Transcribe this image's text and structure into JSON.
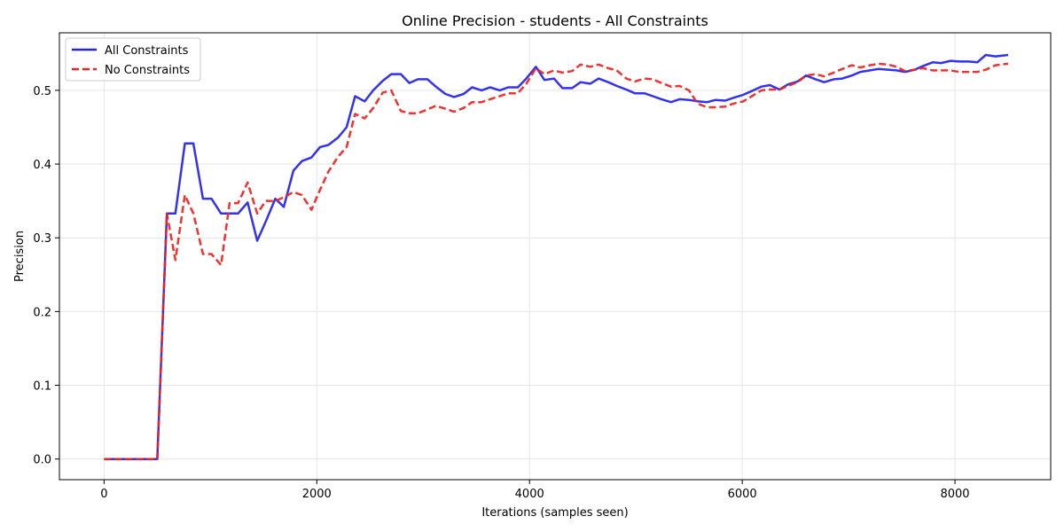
{
  "chart_data": {
    "type": "line",
    "title": "Online Precision - students - All Constraints",
    "xlabel": "Iterations (samples seen)",
    "ylabel": "Precision",
    "xlim": [
      -420,
      8900
    ],
    "ylim": [
      -0.028,
      0.578
    ],
    "xticks": [
      0,
      2000,
      4000,
      6000,
      8000
    ],
    "yticks": [
      0.0,
      0.1,
      0.2,
      0.3,
      0.4,
      0.5
    ],
    "grid": true,
    "legend_position": "top-left",
    "series": [
      {
        "name": "All Constraints",
        "color": "#2222ee",
        "dash": "solid",
        "points": [
          [
            0,
            0
          ],
          [
            100,
            0
          ],
          [
            200,
            0
          ],
          [
            300,
            0
          ],
          [
            400,
            0
          ],
          [
            500,
            0
          ],
          [
            590,
            0.333
          ],
          [
            670,
            0.333
          ],
          [
            760,
            0.428
          ],
          [
            840,
            0.428
          ],
          [
            930,
            0.353
          ],
          [
            1010,
            0.353
          ],
          [
            1100,
            0.333
          ],
          [
            1180,
            0.333
          ],
          [
            1260,
            0.333
          ],
          [
            1350,
            0.348
          ],
          [
            1440,
            0.296
          ],
          [
            1520,
            0.322
          ],
          [
            1610,
            0.353
          ],
          [
            1690,
            0.342
          ],
          [
            1780,
            0.391
          ],
          [
            1860,
            0.404
          ],
          [
            1950,
            0.409
          ],
          [
            2030,
            0.423
          ],
          [
            2110,
            0.426
          ],
          [
            2200,
            0.436
          ],
          [
            2280,
            0.45
          ],
          [
            2360,
            0.492
          ],
          [
            2450,
            0.485
          ],
          [
            2530,
            0.5
          ],
          [
            2620,
            0.513
          ],
          [
            2700,
            0.522
          ],
          [
            2790,
            0.522
          ],
          [
            2870,
            0.51
          ],
          [
            2950,
            0.515
          ],
          [
            3040,
            0.515
          ],
          [
            3120,
            0.505
          ],
          [
            3210,
            0.495
          ],
          [
            3290,
            0.491
          ],
          [
            3380,
            0.495
          ],
          [
            3460,
            0.504
          ],
          [
            3550,
            0.5
          ],
          [
            3630,
            0.504
          ],
          [
            3720,
            0.5
          ],
          [
            3800,
            0.504
          ],
          [
            3890,
            0.504
          ],
          [
            3970,
            0.516
          ],
          [
            4060,
            0.532
          ],
          [
            4140,
            0.514
          ],
          [
            4230,
            0.516
          ],
          [
            4310,
            0.503
          ],
          [
            4400,
            0.503
          ],
          [
            4480,
            0.511
          ],
          [
            4570,
            0.509
          ],
          [
            4650,
            0.516
          ],
          [
            4740,
            0.511
          ],
          [
            4820,
            0.506
          ],
          [
            4910,
            0.501
          ],
          [
            4990,
            0.496
          ],
          [
            5080,
            0.496
          ],
          [
            5160,
            0.492
          ],
          [
            5240,
            0.488
          ],
          [
            5330,
            0.484
          ],
          [
            5410,
            0.488
          ],
          [
            5500,
            0.487
          ],
          [
            5580,
            0.485
          ],
          [
            5670,
            0.484
          ],
          [
            5750,
            0.487
          ],
          [
            5840,
            0.486
          ],
          [
            5920,
            0.49
          ],
          [
            6010,
            0.494
          ],
          [
            6090,
            0.499
          ],
          [
            6180,
            0.505
          ],
          [
            6260,
            0.507
          ],
          [
            6350,
            0.501
          ],
          [
            6430,
            0.508
          ],
          [
            6520,
            0.512
          ],
          [
            6600,
            0.52
          ],
          [
            6690,
            0.515
          ],
          [
            6770,
            0.511
          ],
          [
            6860,
            0.515
          ],
          [
            6940,
            0.516
          ],
          [
            7030,
            0.52
          ],
          [
            7110,
            0.525
          ],
          [
            7200,
            0.527
          ],
          [
            7280,
            0.529
          ],
          [
            7370,
            0.528
          ],
          [
            7450,
            0.527
          ],
          [
            7530,
            0.525
          ],
          [
            7620,
            0.528
          ],
          [
            7700,
            0.533
          ],
          [
            7790,
            0.538
          ],
          [
            7870,
            0.537
          ],
          [
            7960,
            0.54
          ],
          [
            8040,
            0.539
          ],
          [
            8130,
            0.539
          ],
          [
            8210,
            0.538
          ],
          [
            8290,
            0.548
          ],
          [
            8380,
            0.546
          ],
          [
            8500,
            0.548
          ]
        ]
      },
      {
        "name": "No Constraints",
        "color": "#ee2222",
        "dash": "dashed",
        "points": [
          [
            0,
            0
          ],
          [
            100,
            0
          ],
          [
            200,
            0
          ],
          [
            300,
            0
          ],
          [
            400,
            0
          ],
          [
            500,
            0
          ],
          [
            590,
            0.333
          ],
          [
            670,
            0.27
          ],
          [
            760,
            0.358
          ],
          [
            840,
            0.333
          ],
          [
            930,
            0.278
          ],
          [
            1010,
            0.278
          ],
          [
            1100,
            0.263
          ],
          [
            1180,
            0.347
          ],
          [
            1260,
            0.347
          ],
          [
            1350,
            0.375
          ],
          [
            1440,
            0.333
          ],
          [
            1520,
            0.35
          ],
          [
            1610,
            0.35
          ],
          [
            1690,
            0.355
          ],
          [
            1780,
            0.362
          ],
          [
            1860,
            0.358
          ],
          [
            1950,
            0.338
          ],
          [
            2030,
            0.365
          ],
          [
            2110,
            0.39
          ],
          [
            2200,
            0.41
          ],
          [
            2280,
            0.423
          ],
          [
            2360,
            0.468
          ],
          [
            2450,
            0.462
          ],
          [
            2530,
            0.476
          ],
          [
            2620,
            0.497
          ],
          [
            2700,
            0.5
          ],
          [
            2790,
            0.472
          ],
          [
            2870,
            0.469
          ],
          [
            2950,
            0.469
          ],
          [
            3040,
            0.474
          ],
          [
            3120,
            0.479
          ],
          [
            3210,
            0.475
          ],
          [
            3290,
            0.471
          ],
          [
            3380,
            0.476
          ],
          [
            3460,
            0.484
          ],
          [
            3550,
            0.484
          ],
          [
            3630,
            0.488
          ],
          [
            3720,
            0.492
          ],
          [
            3800,
            0.496
          ],
          [
            3890,
            0.496
          ],
          [
            3970,
            0.509
          ],
          [
            4060,
            0.53
          ],
          [
            4140,
            0.522
          ],
          [
            4230,
            0.527
          ],
          [
            4310,
            0.524
          ],
          [
            4400,
            0.526
          ],
          [
            4480,
            0.535
          ],
          [
            4570,
            0.532
          ],
          [
            4650,
            0.535
          ],
          [
            4740,
            0.53
          ],
          [
            4820,
            0.527
          ],
          [
            4910,
            0.516
          ],
          [
            4990,
            0.512
          ],
          [
            5080,
            0.516
          ],
          [
            5160,
            0.515
          ],
          [
            5240,
            0.51
          ],
          [
            5330,
            0.505
          ],
          [
            5410,
            0.506
          ],
          [
            5500,
            0.5
          ],
          [
            5580,
            0.482
          ],
          [
            5670,
            0.477
          ],
          [
            5750,
            0.477
          ],
          [
            5840,
            0.478
          ],
          [
            5920,
            0.482
          ],
          [
            6010,
            0.485
          ],
          [
            6090,
            0.492
          ],
          [
            6180,
            0.5
          ],
          [
            6260,
            0.501
          ],
          [
            6350,
            0.501
          ],
          [
            6430,
            0.506
          ],
          [
            6520,
            0.511
          ],
          [
            6600,
            0.52
          ],
          [
            6690,
            0.522
          ],
          [
            6770,
            0.519
          ],
          [
            6860,
            0.524
          ],
          [
            6940,
            0.529
          ],
          [
            7030,
            0.534
          ],
          [
            7110,
            0.531
          ],
          [
            7200,
            0.534
          ],
          [
            7280,
            0.536
          ],
          [
            7370,
            0.535
          ],
          [
            7450,
            0.532
          ],
          [
            7530,
            0.526
          ],
          [
            7620,
            0.528
          ],
          [
            7700,
            0.53
          ],
          [
            7790,
            0.527
          ],
          [
            7870,
            0.527
          ],
          [
            7960,
            0.527
          ],
          [
            8040,
            0.525
          ],
          [
            8130,
            0.525
          ],
          [
            8210,
            0.525
          ],
          [
            8290,
            0.528
          ],
          [
            8380,
            0.534
          ],
          [
            8500,
            0.536
          ]
        ]
      }
    ]
  }
}
